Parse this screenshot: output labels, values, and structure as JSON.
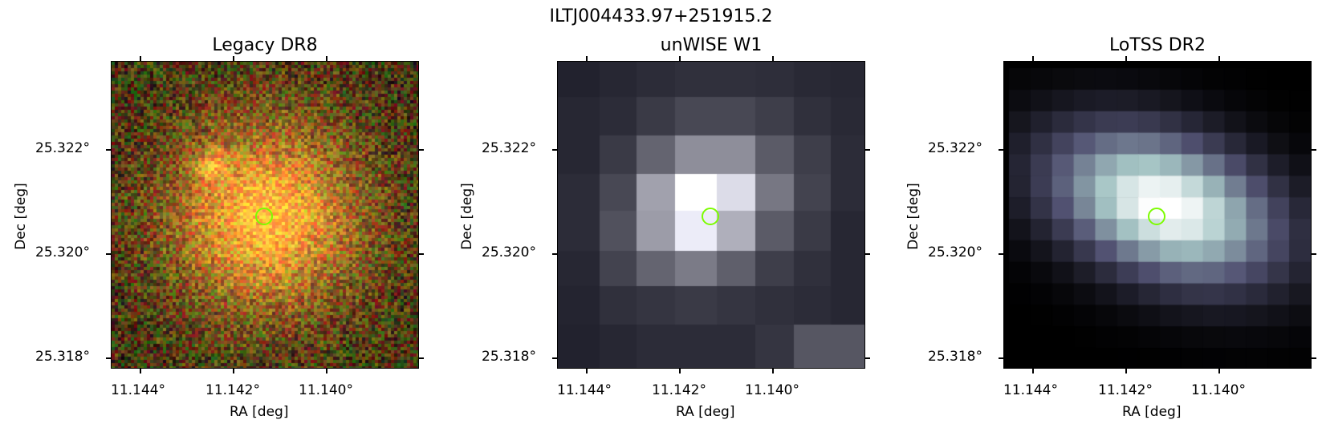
{
  "figure": {
    "source_name": "ILTJ004433.97+251915.2",
    "panels": [
      {
        "key": "legacy",
        "title": "Legacy DR8",
        "xlabel": "RA [deg]",
        "ylabel": "Dec [deg]",
        "xticks": [
          "11.144°",
          "11.142°",
          "11.140°"
        ],
        "yticks": [
          "25.322°",
          "25.320°",
          "25.318°"
        ],
        "image": "optical color cutout, noisy red/green background with orange galaxy at center and small companion upper-left"
      },
      {
        "key": "unwise",
        "title": "unWISE W1",
        "xlabel": "RA [deg]",
        "ylabel": "Dec [deg]",
        "xticks": [
          "11.144°",
          "11.142°",
          "11.140°"
        ],
        "yticks": [
          "25.322°",
          "25.320°",
          "25.318°"
        ],
        "image": "coarse 8x8 pixel grayscale infrared cutout, bright core at center"
      },
      {
        "key": "lotss",
        "title": "LoTSS DR2",
        "xlabel": "RA [deg]",
        "ylabel": "Dec [deg]",
        "xticks": [
          "11.144°",
          "11.142°",
          "11.140°"
        ],
        "yticks": [
          "25.322°",
          "25.320°",
          "25.318°"
        ],
        "image": "radio cutout, bone colormap, elongated bright source at center"
      }
    ],
    "marker_color": "#7cfc00"
  }
}
